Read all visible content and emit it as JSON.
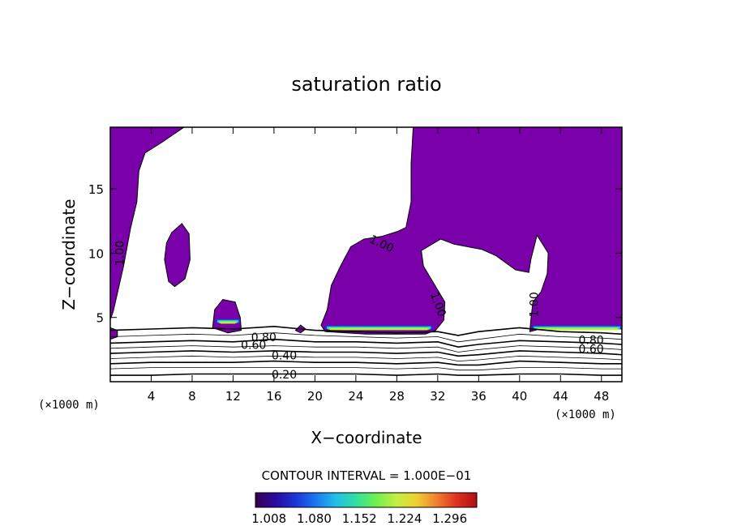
{
  "chart_data": {
    "type": "heatmap",
    "title": "saturation ratio",
    "xlabel": "X−coordinate",
    "ylabel": "Z−coordinate",
    "xunit": "(×1000 m)",
    "yunit": "(×1000 m)",
    "xlim": [
      0,
      50
    ],
    "ylim": [
      0,
      19.8
    ],
    "xticks": [
      4,
      8,
      12,
      16,
      20,
      24,
      28,
      32,
      36,
      40,
      44,
      48
    ],
    "yticks": [
      5,
      10,
      15
    ],
    "contour_interval": "CONTOUR INTERVAL = 1.000E−01",
    "contour_labels": [
      {
        "text": "1.00",
        "x": 1.0,
        "y": 10.0,
        "rotate": -90
      },
      {
        "text": "1.00",
        "x": 26.5,
        "y": 10.7,
        "rotate": 25
      },
      {
        "text": "1.00",
        "x": 32.0,
        "y": 6.0,
        "rotate": 70
      },
      {
        "text": "1.00",
        "x": 41.5,
        "y": 6.0,
        "rotate": -90
      },
      {
        "text": "0.80",
        "x": 15.0,
        "y": 3.4,
        "rotate": 0
      },
      {
        "text": "0.60",
        "x": 14.0,
        "y": 2.8,
        "rotate": 0
      },
      {
        "text": "0.40",
        "x": 17.0,
        "y": 2.0,
        "rotate": 0
      },
      {
        "text": "0.20",
        "x": 17.0,
        "y": 0.5,
        "rotate": 0
      },
      {
        "text": "0.80",
        "x": 47.0,
        "y": 3.2,
        "rotate": 0
      },
      {
        "text": "0.60",
        "x": 47.0,
        "y": 2.5,
        "rotate": 0
      }
    ],
    "colorbar": {
      "ticks": [
        "1.008",
        "1.080",
        "1.152",
        "1.224",
        "1.296"
      ],
      "colors": [
        "#3a0050",
        "#2a0aa0",
        "#1c35d8",
        "#1a78f0",
        "#20c0e8",
        "#30e0a0",
        "#70f050",
        "#c0f040",
        "#f0d030",
        "#f08030",
        "#e03020",
        "#b01010"
      ]
    },
    "colors": {
      "supersaturated": "#7a00aa",
      "subsaturated": "#ffffff"
    },
    "regions": [
      {
        "name": "upper-left supersaturated region",
        "points": [
          [
            0,
            19.8
          ],
          [
            7.2,
            19.8
          ],
          [
            5,
            18.6
          ],
          [
            3.4,
            17.8
          ],
          [
            2.8,
            16.4
          ],
          [
            2.6,
            14
          ],
          [
            2,
            12
          ],
          [
            1.3,
            9
          ],
          [
            0.3,
            5.5
          ],
          [
            0,
            4.8
          ]
        ]
      },
      {
        "name": "mid-level cloud patch",
        "points": [
          [
            5.5,
            10.8
          ],
          [
            6,
            11.6
          ],
          [
            7,
            12.3
          ],
          [
            7.7,
            11.5
          ],
          [
            7.8,
            9.5
          ],
          [
            7.3,
            8
          ],
          [
            6.3,
            7.4
          ],
          [
            5.7,
            7.8
          ],
          [
            5.3,
            9.5
          ]
        ]
      },
      {
        "name": "small cloud near x=12",
        "points": [
          [
            10,
            4.2
          ],
          [
            10.2,
            5.6
          ],
          [
            11,
            6.4
          ],
          [
            12.2,
            6.2
          ],
          [
            12.7,
            5
          ],
          [
            12.8,
            4
          ],
          [
            11.5,
            3.8
          ]
        ]
      },
      {
        "name": "large central and right region",
        "points": [
          [
            29.6,
            19.8
          ],
          [
            50,
            19.8
          ],
          [
            50,
            4.1
          ],
          [
            47,
            4.2
          ],
          [
            43,
            4.3
          ],
          [
            41,
            3.9
          ],
          [
            41.1,
            4.8
          ],
          [
            41.3,
            6.2
          ],
          [
            42.1,
            7
          ],
          [
            42.7,
            8.4
          ],
          [
            42.8,
            10
          ],
          [
            41.7,
            11.4
          ],
          [
            41.1,
            9.5
          ],
          [
            40.9,
            8.5
          ],
          [
            39.6,
            8.7
          ],
          [
            37.7,
            9.8
          ],
          [
            36.3,
            10.3
          ],
          [
            33.6,
            10.7
          ],
          [
            32.3,
            11.1
          ],
          [
            30.4,
            10.2
          ],
          [
            30.6,
            9
          ],
          [
            31.5,
            7.8
          ],
          [
            32.7,
            6.2
          ],
          [
            32.6,
            4.8
          ],
          [
            31.8,
            4
          ],
          [
            30.8,
            3.7
          ],
          [
            25,
            3.7
          ],
          [
            21,
            3.9
          ],
          [
            20.6,
            4.4
          ],
          [
            21.2,
            5.6
          ],
          [
            21.6,
            7.5
          ],
          [
            22.5,
            9
          ],
          [
            23.5,
            10.5
          ],
          [
            24.8,
            11.1
          ],
          [
            26.5,
            11.3
          ],
          [
            28.1,
            11.7
          ],
          [
            28.9,
            12
          ],
          [
            29.4,
            14
          ],
          [
            29.4,
            17
          ]
        ]
      },
      {
        "name": "dot near x=18",
        "points": [
          [
            18.1,
            4
          ],
          [
            18.6,
            4.4
          ],
          [
            19.1,
            4.1
          ],
          [
            18.6,
            3.8
          ]
        ]
      },
      {
        "name": "dot at left edge",
        "points": [
          [
            0,
            3.3
          ],
          [
            0.7,
            3.5
          ],
          [
            0.7,
            4
          ],
          [
            0,
            4.2
          ]
        ]
      }
    ],
    "cloud_base_bands": [
      {
        "x0": 21.0,
        "x1": 31.5,
        "y": 4.0
      },
      {
        "x0": 41.2,
        "x1": 50.0,
        "y": 4.0
      },
      {
        "x0": 10.3,
        "x1": 12.7,
        "y": 4.5
      }
    ],
    "contour_lines": [
      {
        "level": 1.0,
        "bold": true,
        "points": [
          [
            0,
            4.0
          ],
          [
            4,
            4.1
          ],
          [
            8,
            4.2
          ],
          [
            12,
            4.1
          ],
          [
            16,
            4.3
          ],
          [
            20,
            4.0
          ],
          [
            24,
            3.9
          ],
          [
            28,
            3.8
          ],
          [
            32,
            3.9
          ],
          [
            34,
            3.6
          ],
          [
            36,
            3.9
          ],
          [
            40,
            4.2
          ],
          [
            44,
            3.9
          ],
          [
            48,
            3.8
          ],
          [
            50,
            3.7
          ]
        ]
      },
      {
        "level": 0.9,
        "bold": false,
        "points": [
          [
            0,
            3.5
          ],
          [
            4,
            3.6
          ],
          [
            8,
            3.7
          ],
          [
            12,
            3.6
          ],
          [
            16,
            3.8
          ],
          [
            20,
            3.6
          ],
          [
            24,
            3.5
          ],
          [
            28,
            3.4
          ],
          [
            32,
            3.5
          ],
          [
            34,
            3.1
          ],
          [
            36,
            3.3
          ],
          [
            40,
            3.7
          ],
          [
            44,
            3.5
          ],
          [
            48,
            3.4
          ],
          [
            50,
            3.3
          ]
        ]
      },
      {
        "level": 0.8,
        "bold": true,
        "points": [
          [
            0,
            3.0
          ],
          [
            4,
            3.1
          ],
          [
            8,
            3.2
          ],
          [
            12,
            3.1
          ],
          [
            16,
            3.3
          ],
          [
            20,
            3.1
          ],
          [
            24,
            3.1
          ],
          [
            28,
            3.0
          ],
          [
            32,
            3.1
          ],
          [
            34,
            2.7
          ],
          [
            36,
            2.9
          ],
          [
            40,
            3.2
          ],
          [
            44,
            3.1
          ],
          [
            48,
            3.0
          ],
          [
            50,
            2.9
          ]
        ]
      },
      {
        "level": 0.7,
        "bold": false,
        "points": [
          [
            0,
            2.6
          ],
          [
            4,
            2.7
          ],
          [
            8,
            2.8
          ],
          [
            12,
            2.7
          ],
          [
            16,
            2.8
          ],
          [
            20,
            2.7
          ],
          [
            24,
            2.7
          ],
          [
            28,
            2.6
          ],
          [
            32,
            2.7
          ],
          [
            34,
            2.3
          ],
          [
            36,
            2.5
          ],
          [
            40,
            2.8
          ],
          [
            44,
            2.7
          ],
          [
            48,
            2.6
          ],
          [
            50,
            2.5
          ]
        ]
      },
      {
        "level": 0.6,
        "bold": true,
        "points": [
          [
            0,
            2.2
          ],
          [
            4,
            2.3
          ],
          [
            8,
            2.4
          ],
          [
            12,
            2.3
          ],
          [
            16,
            2.4
          ],
          [
            20,
            2.3
          ],
          [
            24,
            2.3
          ],
          [
            28,
            2.2
          ],
          [
            32,
            2.3
          ],
          [
            34,
            2.0
          ],
          [
            36,
            2.1
          ],
          [
            40,
            2.4
          ],
          [
            44,
            2.3
          ],
          [
            48,
            2.2
          ],
          [
            50,
            2.1
          ]
        ]
      },
      {
        "level": 0.5,
        "bold": false,
        "points": [
          [
            0,
            1.8
          ],
          [
            4,
            1.9
          ],
          [
            8,
            2.0
          ],
          [
            12,
            1.9
          ],
          [
            16,
            2.0
          ],
          [
            20,
            1.9
          ],
          [
            24,
            1.9
          ],
          [
            28,
            1.8
          ],
          [
            32,
            1.9
          ],
          [
            34,
            1.6
          ],
          [
            36,
            1.7
          ],
          [
            40,
            2.0
          ],
          [
            44,
            1.9
          ],
          [
            48,
            1.8
          ],
          [
            50,
            1.7
          ]
        ]
      },
      {
        "level": 0.4,
        "bold": true,
        "points": [
          [
            0,
            1.4
          ],
          [
            4,
            1.5
          ],
          [
            8,
            1.5
          ],
          [
            12,
            1.5
          ],
          [
            16,
            1.6
          ],
          [
            20,
            1.5
          ],
          [
            24,
            1.5
          ],
          [
            28,
            1.4
          ],
          [
            32,
            1.5
          ],
          [
            34,
            1.3
          ],
          [
            36,
            1.3
          ],
          [
            40,
            1.6
          ],
          [
            44,
            1.5
          ],
          [
            48,
            1.4
          ],
          [
            50,
            1.4
          ]
        ]
      },
      {
        "level": 0.3,
        "bold": false,
        "points": [
          [
            0,
            1.0
          ],
          [
            4,
            1.1
          ],
          [
            8,
            1.1
          ],
          [
            12,
            1.1
          ],
          [
            16,
            1.1
          ],
          [
            20,
            1.1
          ],
          [
            24,
            1.1
          ],
          [
            28,
            1.0
          ],
          [
            32,
            1.1
          ],
          [
            34,
            0.9
          ],
          [
            36,
            0.9
          ],
          [
            40,
            1.1
          ],
          [
            44,
            1.1
          ],
          [
            48,
            1.0
          ],
          [
            50,
            1.0
          ]
        ]
      },
      {
        "level": 0.2,
        "bold": true,
        "points": [
          [
            0,
            0.5
          ],
          [
            4,
            0.5
          ],
          [
            8,
            0.6
          ],
          [
            12,
            0.6
          ],
          [
            16,
            0.6
          ],
          [
            20,
            0.6
          ],
          [
            24,
            0.6
          ],
          [
            28,
            0.5
          ],
          [
            32,
            0.6
          ],
          [
            34,
            0.5
          ],
          [
            36,
            0.5
          ],
          [
            40,
            0.6
          ],
          [
            44,
            0.6
          ],
          [
            48,
            0.5
          ],
          [
            50,
            0.5
          ]
        ]
      }
    ]
  }
}
